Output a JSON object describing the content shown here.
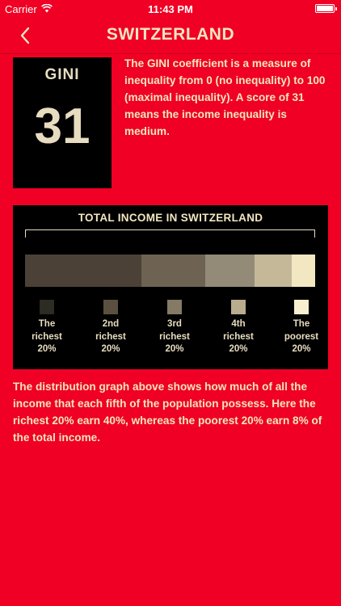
{
  "status_bar": {
    "carrier": "Carrier",
    "time": "11:43 PM"
  },
  "nav": {
    "title": "SWITZERLAND",
    "back_icon": "chevron-left-icon"
  },
  "gini": {
    "label": "GINI",
    "value": "31",
    "description": "The GINI coefficient is a measure of inequality from 0 (no inequality) to 100 (maximal inequality). A score of 31 means the income inequality is medium."
  },
  "distribution": {
    "title": "TOTAL INCOME IN SWITZERLAND",
    "segments": [
      {
        "share": 40,
        "color": "#4b4136"
      },
      {
        "share": 22,
        "color": "#6e6253"
      },
      {
        "share": 17,
        "color": "#948a78"
      },
      {
        "share": 13,
        "color": "#c4b899"
      },
      {
        "share": 8,
        "color": "#f3e7c1"
      }
    ],
    "legend": [
      {
        "lines": [
          "The",
          "richest",
          "20%"
        ],
        "color": "#2e2a24"
      },
      {
        "lines": [
          "2nd",
          "richest",
          "20%"
        ],
        "color": "#5b5040"
      },
      {
        "lines": [
          "3rd",
          "richest",
          "20%"
        ],
        "color": "#857a66"
      },
      {
        "lines": [
          "4th",
          "richest",
          "20%"
        ],
        "color": "#b9ad8d"
      },
      {
        "lines": [
          "The",
          "poorest",
          "20%"
        ],
        "color": "#f7efcf"
      }
    ]
  },
  "footer": {
    "text": "The distribution graph above shows how much of all the income that each fifth of the population possess. Here the richest 20% earn 40%, whereas the poorest 20% earn 8% of the total income."
  },
  "colors": {
    "background": "#ef0024",
    "text": "#f3e6c0",
    "box": "#000000"
  }
}
